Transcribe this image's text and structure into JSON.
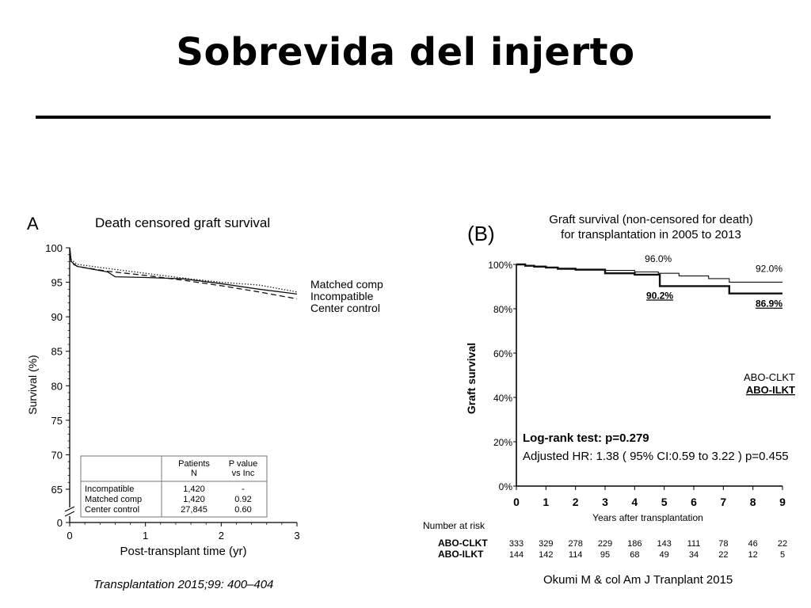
{
  "slide": {
    "title": "Sobrevida del injerto",
    "citation_a": "Transplantation 2015;99: 400–404",
    "citation_b": "Okumi M & col Am J Tranplant 2015"
  },
  "chart_data": [
    {
      "type": "line",
      "panel": "A",
      "title": "Death censored graft survival",
      "xlabel": "Post-transplant time (yr)",
      "ylabel": "Survival (%)",
      "xlim": [
        0,
        3
      ],
      "ylim": [
        0,
        100
      ],
      "axis_break": true,
      "x_ticks": [
        "0",
        "1",
        "2",
        "3"
      ],
      "y_ticks": [
        "0",
        "65",
        "70",
        "75",
        "80",
        "85",
        "90",
        "95",
        "100"
      ],
      "grid": false,
      "legend_position": "right",
      "series": [
        {
          "name": "Matched comp",
          "style": "dotted",
          "x": [
            0,
            0.02,
            0.1,
            0.5,
            1.0,
            1.5,
            2.0,
            2.5,
            3.0
          ],
          "y": [
            100,
            98.3,
            97.6,
            97.0,
            96.3,
            95.6,
            95.0,
            94.6,
            93.6
          ]
        },
        {
          "name": "Incompatible",
          "style": "solid",
          "x": [
            0,
            0.02,
            0.1,
            0.5,
            0.6,
            1.0,
            1.5,
            2.0,
            2.5,
            3.0
          ],
          "y": [
            100,
            98.0,
            97.3,
            96.5,
            95.8,
            95.7,
            95.5,
            94.8,
            94.0,
            93.3
          ]
        },
        {
          "name": "Center control",
          "style": "dashed",
          "x": [
            0,
            0.02,
            0.1,
            0.5,
            1.0,
            1.5,
            2.0,
            2.5,
            3.0
          ],
          "y": [
            100,
            97.8,
            97.3,
            96.6,
            96.0,
            95.3,
            94.5,
            93.6,
            92.6
          ]
        }
      ],
      "table": {
        "header": [
          "",
          "Patients\nN",
          "P value\nvs Inc"
        ],
        "rows": [
          [
            "Incompatible",
            "1,420",
            "-"
          ],
          [
            "Matched comp",
            "1,420",
            "0.92"
          ],
          [
            "Center control",
            "27,845",
            "0.60"
          ]
        ]
      }
    },
    {
      "type": "line",
      "panel": "(B)",
      "title": "Graft survival (non-censored for death)",
      "subtitle": "for transplantation in 2005 to 2013",
      "xlabel": "Years after transplantation",
      "ylabel": "Graft survival",
      "xlim": [
        0,
        9
      ],
      "ylim": [
        0,
        100
      ],
      "x_ticks": [
        "0",
        "1",
        "2",
        "3",
        "4",
        "5",
        "6",
        "7",
        "8",
        "9"
      ],
      "y_ticks": [
        "0%",
        "20%",
        "40%",
        "60%",
        "80%",
        "100%"
      ],
      "grid": false,
      "legend_position": "right",
      "series": [
        {
          "name": "ABO-CLKT",
          "style": "thin",
          "x": [
            0,
            0.3,
            0.6,
            1.0,
            1.4,
            2.0,
            3.0,
            4.0,
            4.8,
            5.5,
            6.5,
            7.2,
            9.0
          ],
          "y": [
            100,
            99.6,
            99.2,
            98.6,
            98.3,
            97.9,
            97.3,
            96.6,
            96.0,
            94.8,
            93.6,
            92.0,
            92.0
          ]
        },
        {
          "name": "ABO-ILKT",
          "style": "thick",
          "x": [
            0,
            0.3,
            0.6,
            1.0,
            1.4,
            2.0,
            3.0,
            4.0,
            4.85,
            5.4,
            6.5,
            7.2,
            9.0
          ],
          "y": [
            100,
            99.4,
            99.0,
            98.6,
            98.0,
            97.6,
            96.0,
            95.4,
            90.2,
            90.2,
            90.2,
            86.9,
            86.9
          ]
        }
      ],
      "annotations": [
        {
          "label": "96.0%",
          "x": 4.8,
          "y": 96.0
        },
        {
          "label": "92.0%",
          "x": 9.0,
          "y": 92.0
        },
        {
          "label": "90.2%",
          "x": 4.85,
          "y": 90.2
        },
        {
          "label": "86.9%",
          "x": 9.0,
          "y": 86.9
        }
      ],
      "stats": [
        "Log-rank test: p=0.279",
        "Adjusted HR: 1.38 ( 95% CI:0.59 to 3.22 ) p=0.455"
      ],
      "risk_table": {
        "title": "Number at risk",
        "rows": [
          {
            "name": "ABO-CLKT",
            "values": [
              "333",
              "329",
              "278",
              "229",
              "186",
              "143",
              "111",
              "78",
              "46",
              "22"
            ]
          },
          {
            "name": "ABO-ILKT",
            "values": [
              "144",
              "142",
              "114",
              "95",
              "68",
              "49",
              "34",
              "22",
              "12",
              "5"
            ]
          }
        ]
      }
    }
  ]
}
